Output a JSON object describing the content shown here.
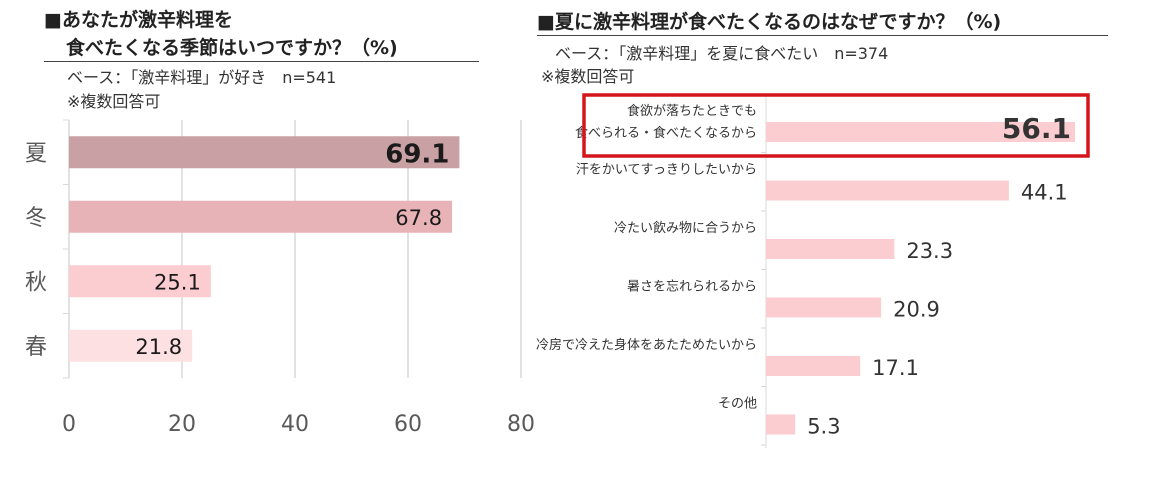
{
  "left": {
    "title_line1": "■あなたが激辛料理を",
    "title_line2": "食べたくなる季節はいつですか？（%)",
    "base": "ベース：「激辛料理」が好き　n=541",
    "note": "※複数回答可"
  },
  "right": {
    "title": "■夏に激辛料理が食べたくなるのはなぜですか？（%)",
    "base": "ベース：「激辛料理」を夏に食べたい　n=374",
    "note": "※複数回答可"
  },
  "chart_data": [
    {
      "type": "bar",
      "orientation": "horizontal",
      "title": "■あなたが激辛料理を食べたくなる季節はいつですか？（%)",
      "categories": [
        "夏",
        "冬",
        "秋",
        "春"
      ],
      "values": [
        69.1,
        67.8,
        25.1,
        21.8
      ],
      "value_labels": [
        "69.1",
        "67.8",
        "25.1",
        "21.8"
      ],
      "xlim": [
        0,
        80
      ],
      "xticks": [
        "0",
        "20",
        "40",
        "60",
        "80"
      ],
      "grid": true,
      "colors": [
        "#c9a0a3",
        "#e8b3b6",
        "#fccdd0",
        "#fde0e2"
      ],
      "highlight_index": 0
    },
    {
      "type": "bar",
      "orientation": "horizontal",
      "title": "■夏に激辛料理が食べたくなるのはなぜですか？（%)",
      "categories": [
        [
          "食欲が落ちたときでも",
          "食べられる・食べたくなるから"
        ],
        [
          "汗をかいてすっきりしたいから"
        ],
        [
          "冷たい飲み物に合うから"
        ],
        [
          "暑さを忘れられるから"
        ],
        [
          "冷房で冷えた身体をあたためたいから"
        ],
        [
          "その他"
        ]
      ],
      "values": [
        56.1,
        44.1,
        23.3,
        20.9,
        17.1,
        5.3
      ],
      "value_labels": [
        "56.1",
        "44.1",
        "23.3",
        "20.9",
        "17.1",
        "5.3"
      ],
      "grid": false,
      "bar_color": "#fccdd0",
      "highlight_index": 0,
      "highlight_box_color": "#d4161c"
    }
  ]
}
